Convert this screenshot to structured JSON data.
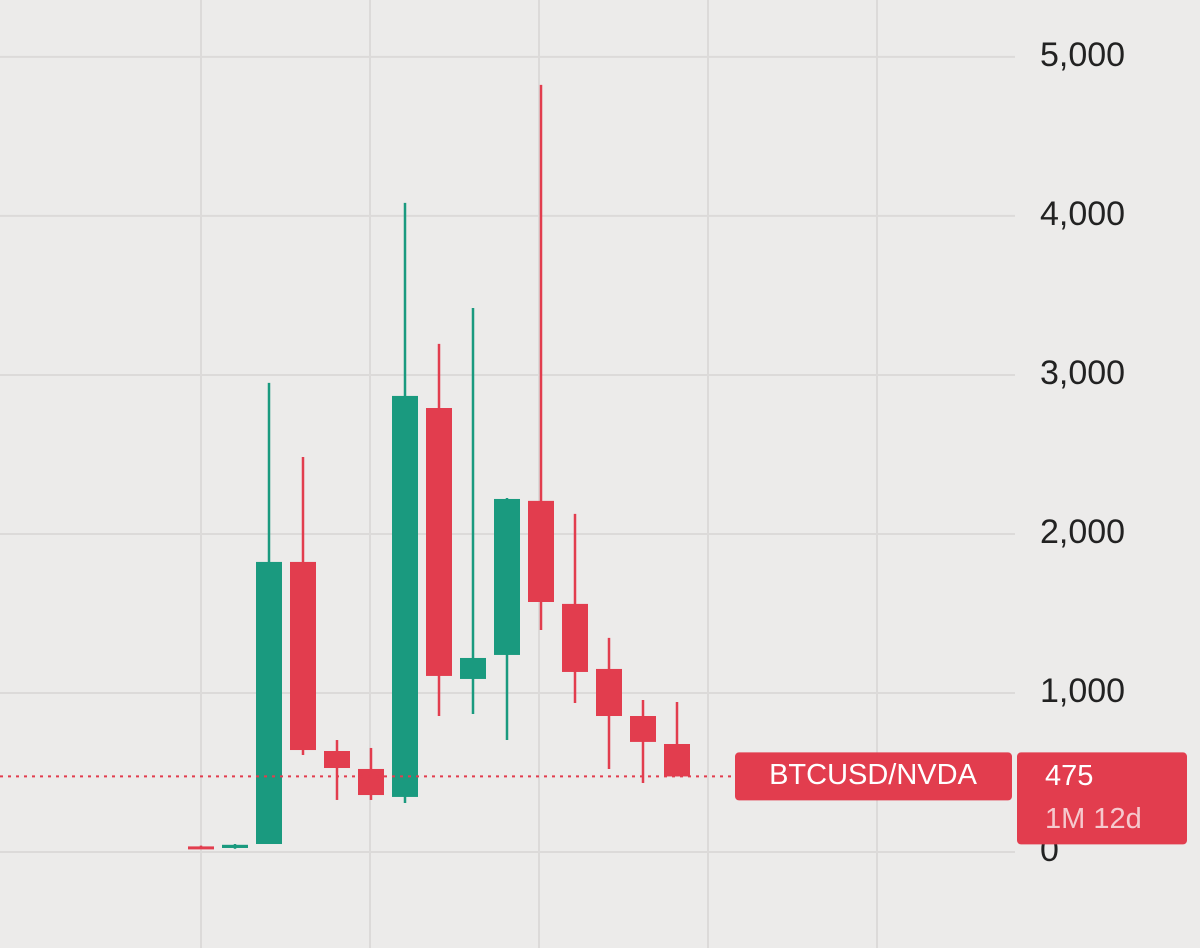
{
  "chart_data": {
    "type": "candlestick",
    "series_label": "BTCUSD/NVDA",
    "last_price": 475,
    "countdown": "1M 12d",
    "up_color": "#1a9a7f",
    "down_color": "#e23d4e",
    "grid": true,
    "open": [
      35,
      25,
      50,
      1824,
      635,
      522,
      346,
      2792,
      1088,
      1239,
      2208,
      1560,
      1151,
      855,
      679
    ],
    "high": [
      40,
      50,
      2950,
      2484,
      704,
      654,
      4082,
      3195,
      3421,
      2226,
      4824,
      2126,
      1346,
      956,
      943
    ],
    "low": [
      20,
      20,
      50,
      610,
      327,
      327,
      308,
      855,
      868,
      704,
      1396,
      937,
      522,
      434,
      475
    ],
    "close": [
      25,
      45,
      1824,
      641,
      528,
      358,
      2868,
      1107,
      1220,
      2220,
      1572,
      1132,
      855,
      692,
      475
    ],
    "ylim": [
      -604,
      5358
    ],
    "yticks": [
      0,
      {
        "value": 1000,
        "label": "1,000"
      },
      {
        "value": 2000,
        "label": "2,000"
      },
      {
        "value": 3000,
        "label": "3,000"
      },
      {
        "value": 4000,
        "label": "4,000"
      },
      {
        "value": 5000,
        "label": "5,000"
      }
    ]
  }
}
